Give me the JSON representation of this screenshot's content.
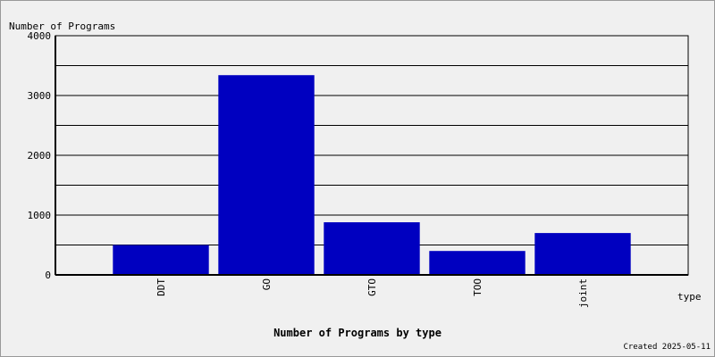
{
  "chart_data": {
    "type": "bar",
    "title": "Number of Programs by type",
    "y_label": "Number of Programs",
    "x_label": "type",
    "footer": "Created 2025-05-11",
    "categories": [
      "DDT",
      "GO",
      "GTO",
      "TOO",
      "joint"
    ],
    "values": [
      500,
      3340,
      880,
      400,
      700
    ],
    "color": "#0000c0",
    "ylim": [
      0,
      4000
    ],
    "yticks": [
      0,
      1000,
      2000,
      3000,
      4000
    ],
    "ygrid_minor": [
      500,
      1500,
      2500,
      3500
    ],
    "grid": true
  }
}
